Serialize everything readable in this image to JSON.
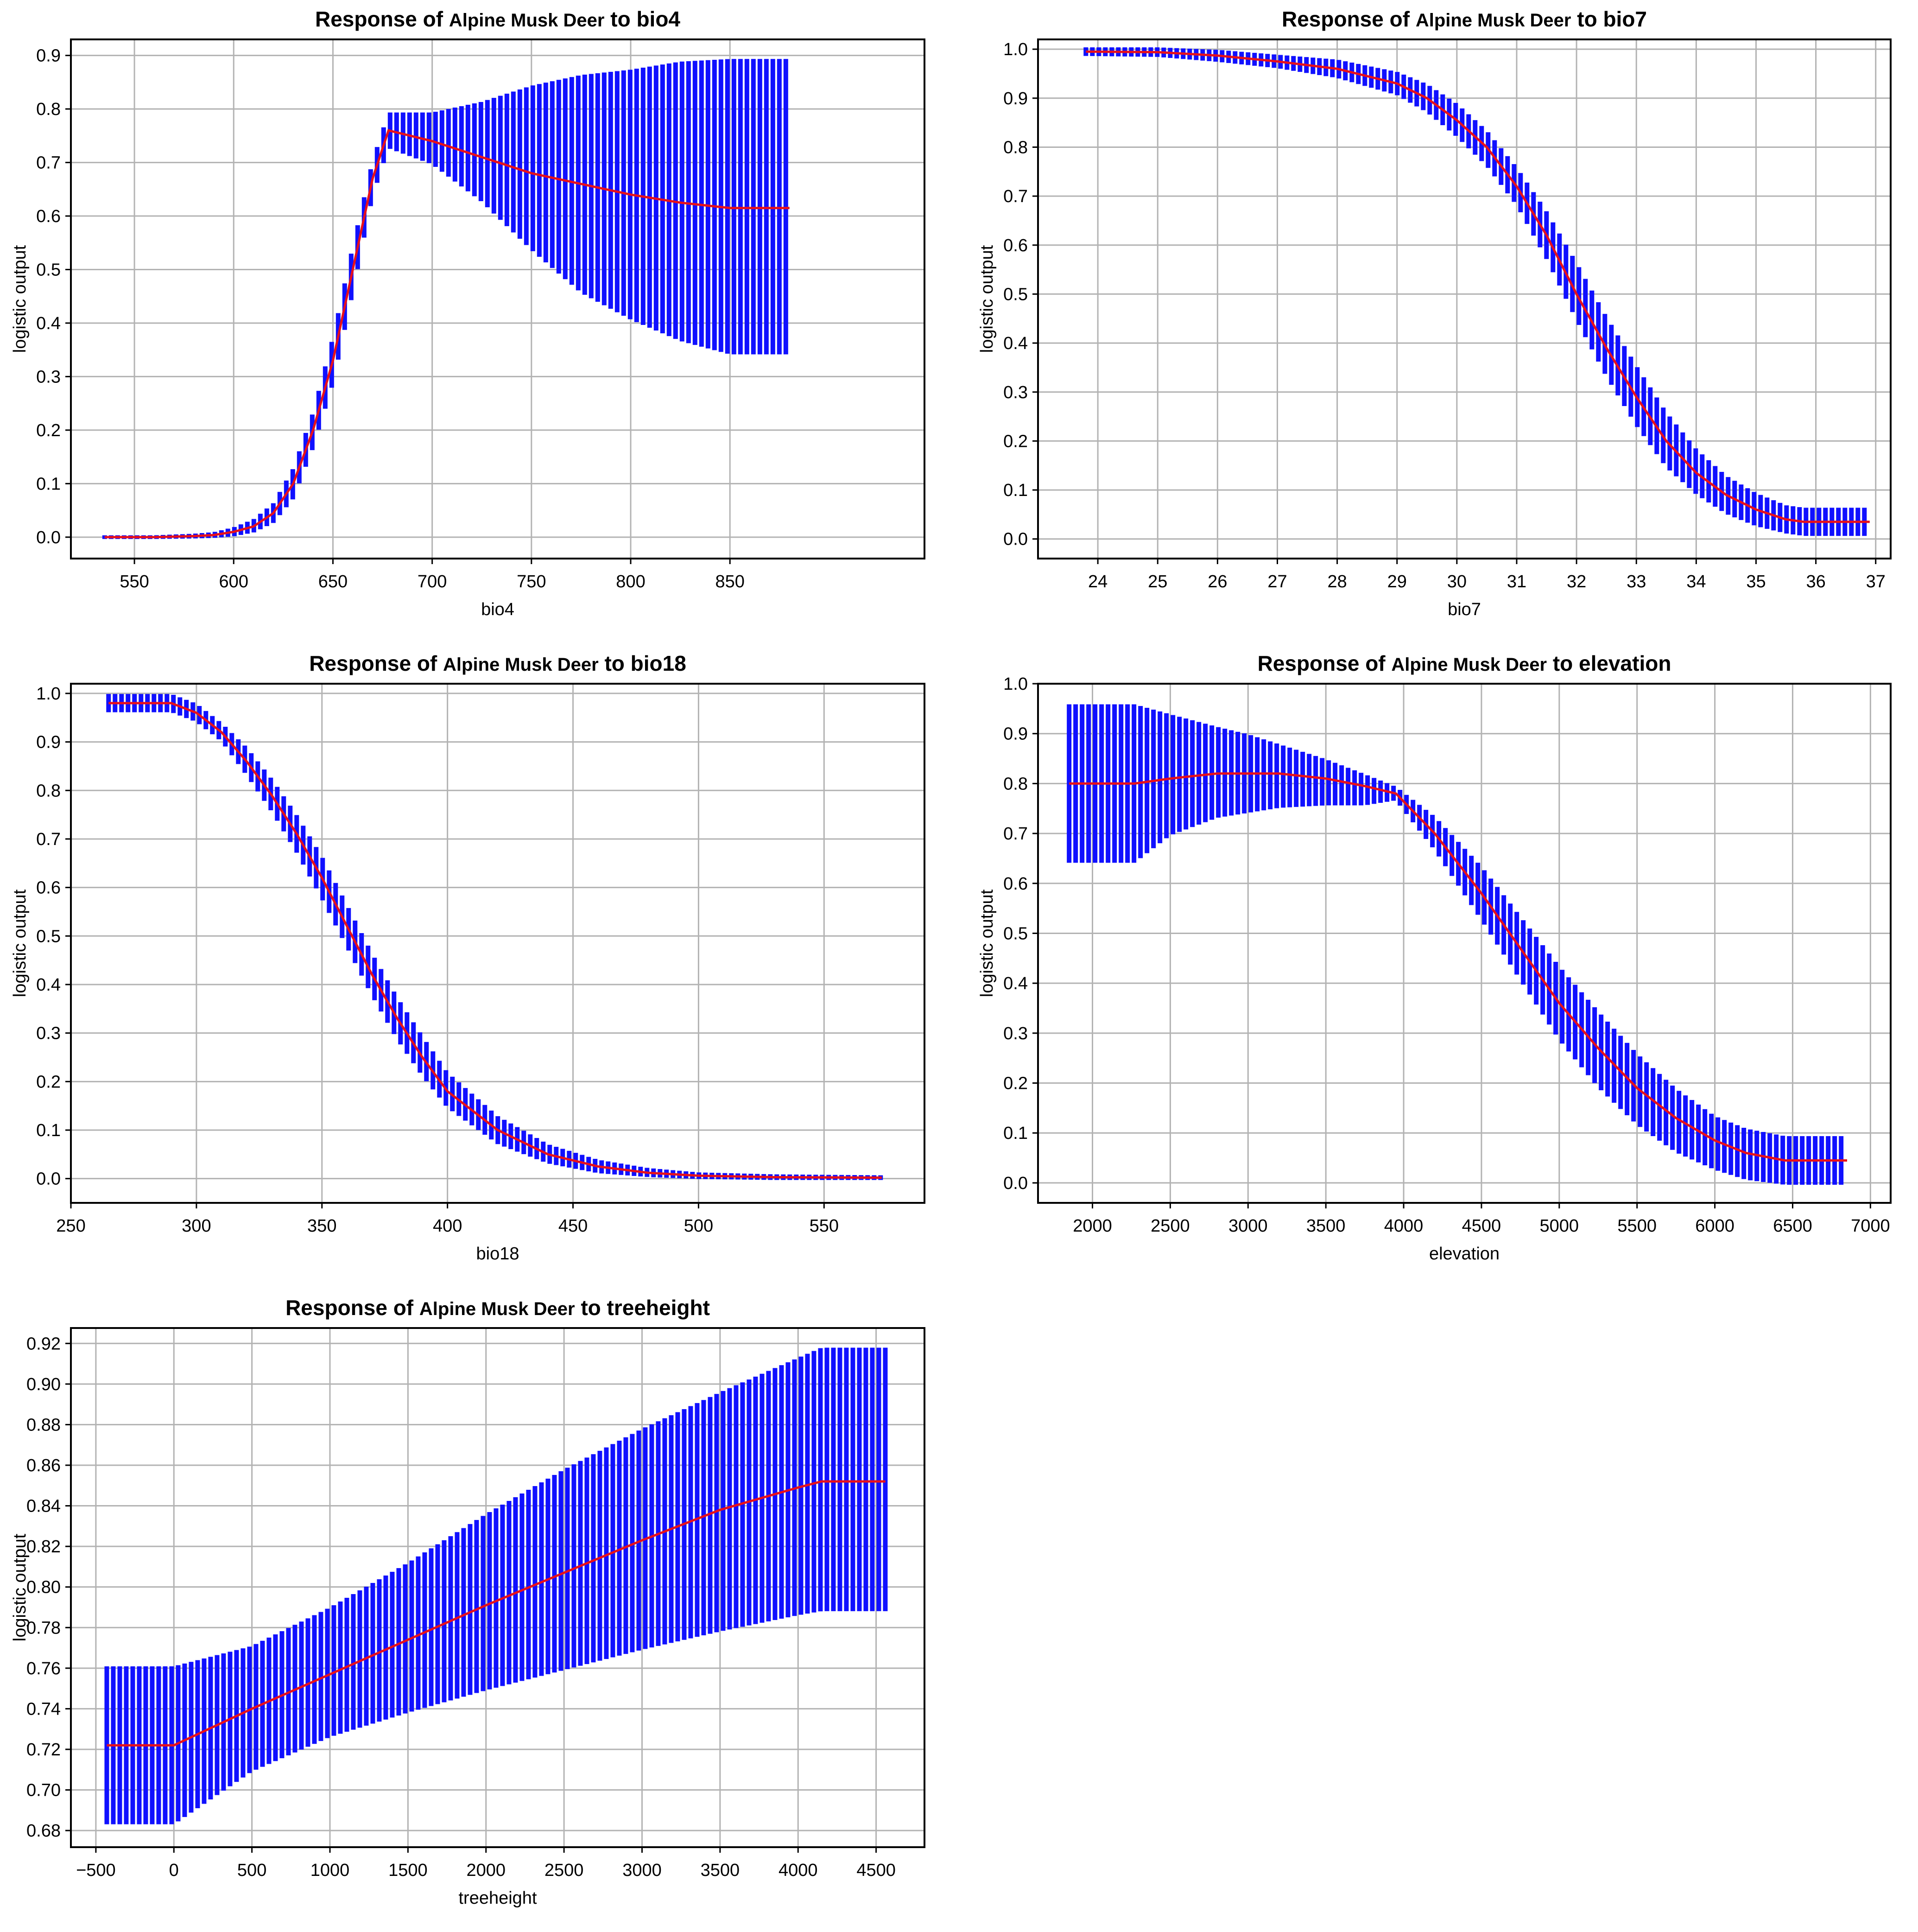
{
  "colors": {
    "band": "#1010ff",
    "mean": "#e8101a",
    "grid": "#b3b3b3",
    "frame": "#000000"
  },
  "chart_data": [
    {
      "type": "area",
      "title": {
        "prefix": "Response of ",
        "species": "Alpine Musk Deer",
        "suffix": " to bio4"
      },
      "xlabel": "bio4",
      "ylabel": "logistic output",
      "xlim": [
        518,
        948
      ],
      "ylim": [
        -0.04,
        0.93
      ],
      "xticks": [
        550,
        600,
        650,
        700,
        750,
        800,
        850
      ],
      "yticks": [
        0.0,
        0.1,
        0.2,
        0.3,
        0.4,
        0.5,
        0.6,
        0.7,
        0.8,
        0.9
      ],
      "tick_decimals": 1,
      "grid": true,
      "series": [
        {
          "role": "mean",
          "x": [
            535,
            560,
            580,
            590,
            600,
            610,
            620,
            630,
            640,
            650,
            660,
            670,
            678,
            700,
            725,
            750,
            775,
            800,
            825,
            850,
            880
          ],
          "values": [
            0.0,
            0.0,
            0.002,
            0.004,
            0.01,
            0.02,
            0.045,
            0.1,
            0.2,
            0.33,
            0.5,
            0.67,
            0.76,
            0.74,
            0.71,
            0.68,
            0.66,
            0.64,
            0.625,
            0.615,
            0.615
          ]
        },
        {
          "role": "upper",
          "x": [
            535,
            560,
            580,
            590,
            600,
            610,
            620,
            630,
            640,
            650,
            660,
            670,
            678,
            700,
            725,
            750,
            775,
            800,
            825,
            850,
            880
          ],
          "values": [
            0.0,
            0.0,
            0.003,
            0.006,
            0.015,
            0.03,
            0.06,
            0.125,
            0.23,
            0.37,
            0.54,
            0.7,
            0.79,
            0.79,
            0.81,
            0.84,
            0.86,
            0.87,
            0.885,
            0.89,
            0.89
          ]
        },
        {
          "role": "lower",
          "x": [
            535,
            560,
            580,
            590,
            600,
            610,
            620,
            630,
            640,
            650,
            660,
            670,
            678,
            700,
            725,
            750,
            775,
            800,
            825,
            850,
            880
          ],
          "values": [
            0.0,
            0.0,
            0.001,
            0.002,
            0.005,
            0.012,
            0.03,
            0.075,
            0.17,
            0.29,
            0.46,
            0.64,
            0.73,
            0.7,
            0.63,
            0.54,
            0.46,
            0.41,
            0.37,
            0.345,
            0.345
          ]
        }
      ]
    },
    {
      "type": "area",
      "title": {
        "prefix": "Response of ",
        "species": "Alpine Musk Deer",
        "suffix": " to bio7"
      },
      "xlabel": "bio7",
      "ylabel": "logistic output",
      "xlim": [
        23.0,
        37.25
      ],
      "ylim": [
        -0.04,
        1.02
      ],
      "xticks": [
        24,
        25,
        26,
        27,
        28,
        29,
        30,
        31,
        32,
        33,
        34,
        35,
        36,
        37
      ],
      "yticks": [
        0.0,
        0.1,
        0.2,
        0.3,
        0.4,
        0.5,
        0.6,
        0.7,
        0.8,
        0.9,
        1.0
      ],
      "tick_decimals": 1,
      "grid": true,
      "series": [
        {
          "role": "mean",
          "x": [
            23.8,
            25.0,
            26.0,
            27.0,
            28.0,
            29.0,
            29.5,
            30.0,
            30.5,
            31.0,
            31.5,
            32.0,
            32.5,
            33.0,
            33.5,
            34.0,
            34.5,
            35.0,
            35.5,
            35.8,
            36.9
          ],
          "values": [
            0.995,
            0.994,
            0.987,
            0.975,
            0.96,
            0.93,
            0.9,
            0.855,
            0.8,
            0.72,
            0.62,
            0.5,
            0.39,
            0.29,
            0.2,
            0.135,
            0.09,
            0.06,
            0.04,
            0.035,
            0.035
          ]
        },
        {
          "role": "upper",
          "x": [
            23.8,
            25.0,
            26.0,
            27.0,
            28.0,
            29.0,
            29.5,
            30.0,
            30.5,
            31.0,
            31.5,
            32.0,
            32.5,
            33.0,
            33.5,
            34.0,
            34.5,
            35.0,
            35.5,
            35.8,
            36.9
          ],
          "values": [
            1.0,
            1.0,
            0.995,
            0.985,
            0.975,
            0.95,
            0.925,
            0.885,
            0.83,
            0.755,
            0.665,
            0.56,
            0.45,
            0.35,
            0.255,
            0.18,
            0.125,
            0.09,
            0.065,
            0.06,
            0.06
          ]
        },
        {
          "role": "lower",
          "x": [
            23.8,
            25.0,
            26.0,
            27.0,
            28.0,
            29.0,
            29.5,
            30.0,
            30.5,
            31.0,
            31.5,
            32.0,
            32.5,
            33.0,
            33.5,
            34.0,
            34.5,
            35.0,
            35.5,
            35.8,
            36.9
          ],
          "values": [
            0.99,
            0.988,
            0.978,
            0.965,
            0.945,
            0.91,
            0.875,
            0.825,
            0.765,
            0.685,
            0.575,
            0.45,
            0.335,
            0.235,
            0.15,
            0.095,
            0.055,
            0.03,
            0.015,
            0.01,
            0.01
          ]
        }
      ]
    },
    {
      "type": "area",
      "title": {
        "prefix": "Response of ",
        "species": "Alpine Musk Deer",
        "suffix": " to bio18"
      },
      "xlabel": "bio18",
      "ylabel": "logistic output",
      "xlim": [
        250,
        590
      ],
      "ylim": [
        -0.05,
        1.02
      ],
      "xticks": [
        250,
        300,
        350,
        400,
        450,
        500,
        550
      ],
      "yticks": [
        0.0,
        0.1,
        0.2,
        0.3,
        0.4,
        0.5,
        0.6,
        0.7,
        0.8,
        0.9,
        1.0
      ],
      "tick_decimals": 1,
      "grid": true,
      "series": [
        {
          "role": "mean",
          "x": [
            265,
            290,
            300,
            310,
            320,
            330,
            340,
            350,
            360,
            370,
            380,
            390,
            400,
            420,
            440,
            460,
            480,
            500,
            530,
            573
          ],
          "values": [
            0.98,
            0.98,
            0.96,
            0.92,
            0.86,
            0.79,
            0.71,
            0.62,
            0.52,
            0.42,
            0.33,
            0.25,
            0.18,
            0.1,
            0.05,
            0.025,
            0.012,
            0.006,
            0.003,
            0.002
          ]
        },
        {
          "role": "upper",
          "x": [
            265,
            290,
            300,
            310,
            320,
            330,
            340,
            350,
            360,
            370,
            380,
            390,
            400,
            420,
            440,
            460,
            480,
            500,
            530,
            573
          ],
          "values": [
            0.995,
            0.995,
            0.975,
            0.935,
            0.885,
            0.82,
            0.745,
            0.66,
            0.56,
            0.46,
            0.37,
            0.29,
            0.215,
            0.125,
            0.067,
            0.035,
            0.018,
            0.009,
            0.005,
            0.003
          ]
        },
        {
          "role": "lower",
          "x": [
            265,
            290,
            300,
            310,
            320,
            330,
            340,
            350,
            360,
            370,
            380,
            390,
            400,
            420,
            440,
            460,
            480,
            500,
            530,
            573
          ],
          "values": [
            0.965,
            0.965,
            0.945,
            0.905,
            0.835,
            0.76,
            0.675,
            0.58,
            0.48,
            0.38,
            0.29,
            0.215,
            0.15,
            0.075,
            0.035,
            0.015,
            0.007,
            0.003,
            0.001,
            0.001
          ]
        }
      ]
    },
    {
      "type": "area",
      "title": {
        "prefix": "Response of ",
        "species": "Alpine Musk Deer",
        "suffix": " to elevation"
      },
      "xlabel": "elevation",
      "ylabel": "logistic output",
      "xlim": [
        1650,
        7130
      ],
      "ylim": [
        -0.04,
        1.0
      ],
      "xticks": [
        2000,
        2500,
        3000,
        3500,
        4000,
        4500,
        5000,
        5500,
        6000,
        6500,
        7000
      ],
      "yticks": [
        0.0,
        0.1,
        0.2,
        0.3,
        0.4,
        0.5,
        0.6,
        0.7,
        0.8,
        0.9,
        1.0
      ],
      "tick_decimals": 1,
      "grid": true,
      "series": [
        {
          "role": "mean",
          "x": [
            1850,
            2270,
            2500,
            2800,
            3000,
            3200,
            3500,
            3750,
            3950,
            4200,
            4500,
            4750,
            5000,
            5250,
            5500,
            5750,
            6000,
            6200,
            6450,
            6850
          ],
          "values": [
            0.8,
            0.8,
            0.81,
            0.82,
            0.82,
            0.82,
            0.81,
            0.795,
            0.78,
            0.7,
            0.58,
            0.47,
            0.36,
            0.27,
            0.19,
            0.13,
            0.085,
            0.06,
            0.045,
            0.045
          ]
        },
        {
          "role": "upper",
          "x": [
            1850,
            2270,
            2500,
            2800,
            3000,
            3200,
            3500,
            3750,
            3950,
            4200,
            4500,
            4750,
            5000,
            5250,
            5500,
            5750,
            6000,
            6200,
            6450,
            6850
          ],
          "values": [
            0.955,
            0.955,
            0.935,
            0.91,
            0.895,
            0.875,
            0.845,
            0.815,
            0.79,
            0.73,
            0.63,
            0.53,
            0.43,
            0.34,
            0.255,
            0.185,
            0.13,
            0.105,
            0.09,
            0.09
          ]
        },
        {
          "role": "lower",
          "x": [
            1850,
            2270,
            2500,
            2800,
            3000,
            3200,
            3500,
            3750,
            3950,
            4200,
            4500,
            4750,
            5000,
            5250,
            5500,
            5750,
            6000,
            6200,
            6450,
            6850
          ],
          "values": [
            0.645,
            0.645,
            0.7,
            0.735,
            0.745,
            0.755,
            0.76,
            0.76,
            0.77,
            0.67,
            0.53,
            0.41,
            0.29,
            0.195,
            0.12,
            0.065,
            0.03,
            0.01,
            0.0,
            0.0
          ]
        }
      ]
    },
    {
      "type": "area",
      "title": {
        "prefix": "Response of ",
        "species": "Alpine Musk Deer",
        "suffix": " to treeheight"
      },
      "xlabel": "treeheight",
      "ylabel": "logistic output",
      "xlim": [
        -660,
        4810
      ],
      "ylim": [
        0.6718,
        0.9276
      ],
      "xticks": [
        -500,
        0,
        500,
        1000,
        1500,
        2000,
        2500,
        3000,
        3500,
        4000,
        4500
      ],
      "yticks": [
        0.68,
        0.7,
        0.72,
        0.74,
        0.76,
        0.78,
        0.8,
        0.82,
        0.84,
        0.86,
        0.88,
        0.9,
        0.92
      ],
      "tick_decimals": 2,
      "grid": true,
      "series": [
        {
          "role": "mean",
          "x": [
            -430,
            0,
            500,
            1000,
            1500,
            2000,
            2500,
            3000,
            3500,
            4000,
            4150,
            4560
          ],
          "values": [
            0.722,
            0.722,
            0.74,
            0.757,
            0.774,
            0.791,
            0.807,
            0.823,
            0.838,
            0.849,
            0.852,
            0.852
          ]
        },
        {
          "role": "upper",
          "x": [
            -430,
            0,
            500,
            1000,
            1500,
            2000,
            2500,
            3000,
            3500,
            4000,
            4150,
            4560
          ],
          "values": [
            0.76,
            0.76,
            0.77,
            0.789,
            0.811,
            0.835,
            0.857,
            0.877,
            0.895,
            0.912,
            0.917,
            0.917
          ]
        },
        {
          "role": "lower",
          "x": [
            -430,
            0,
            500,
            1000,
            1500,
            2000,
            2500,
            3000,
            3500,
            4000,
            4150,
            4560
          ],
          "values": [
            0.684,
            0.684,
            0.71,
            0.727,
            0.739,
            0.75,
            0.76,
            0.77,
            0.779,
            0.787,
            0.789,
            0.789
          ]
        }
      ]
    }
  ]
}
